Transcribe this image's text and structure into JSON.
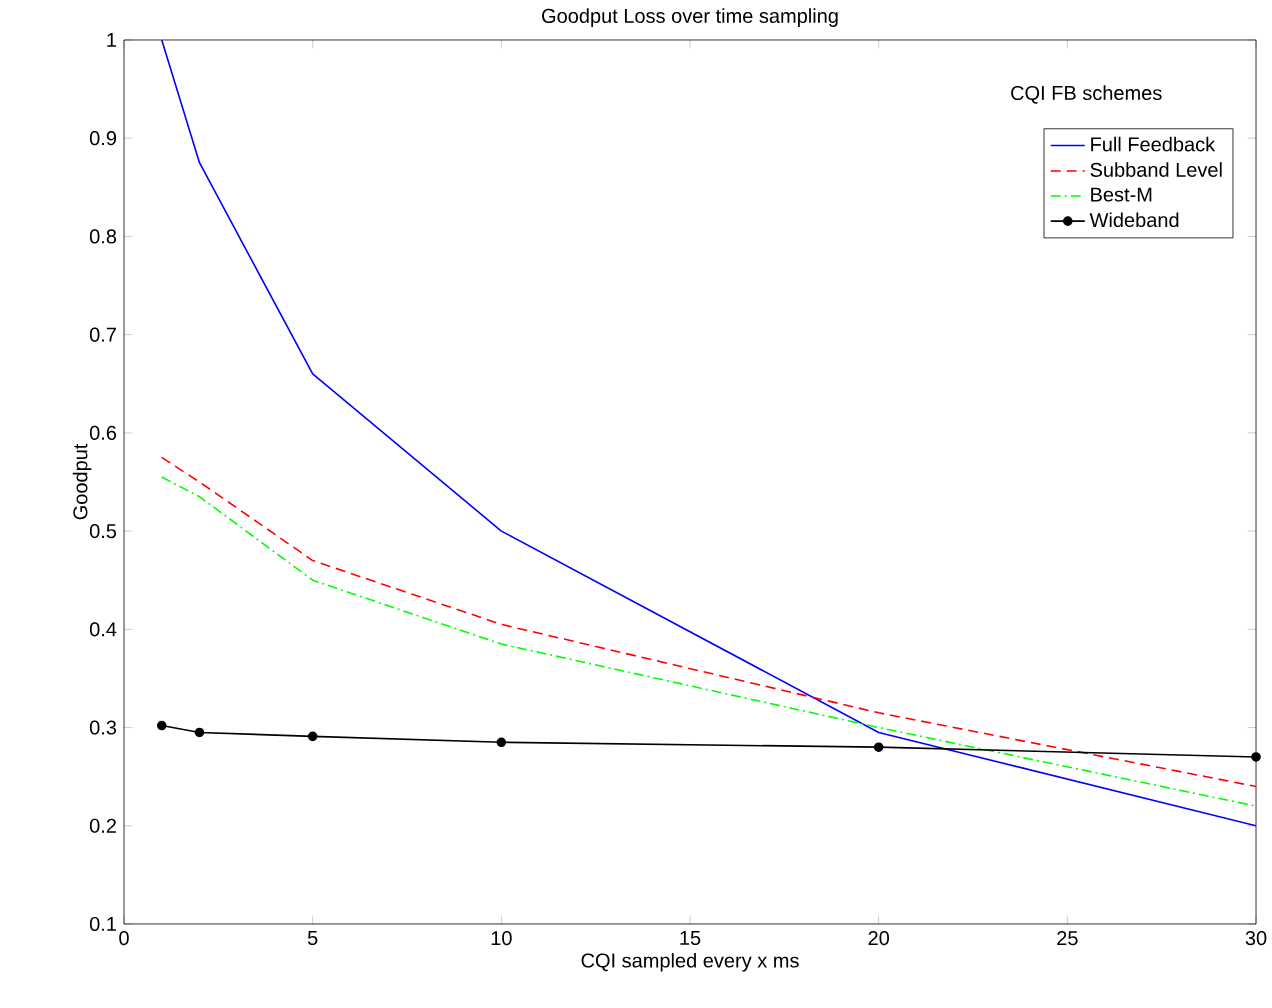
{
  "chart_data": {
    "type": "line",
    "title": "Goodput Loss over time sampling",
    "xlabel": "CQI sampled every x ms",
    "ylabel": "Goodput",
    "legend_title": "CQI FB schemes",
    "legend": "top right",
    "x": [
      1,
      2,
      5,
      10,
      20,
      30
    ],
    "series": [
      {
        "name": "Full Feedback",
        "color": "#0000ff",
        "line_style": "solid",
        "marker": "none",
        "values": [
          1.0,
          0.875,
          0.66,
          0.5,
          0.295,
          0.2
        ]
      },
      {
        "name": "Subband Level",
        "color": "#ff0000",
        "line_style": "dashed",
        "marker": "none",
        "values": [
          0.575,
          0.55,
          0.47,
          0.405,
          0.315,
          0.24
        ]
      },
      {
        "name": "Best-M",
        "color": "#00ff00",
        "line_style": "dashdot",
        "marker": "none",
        "values": [
          0.555,
          0.535,
          0.45,
          0.385,
          0.3,
          0.22
        ]
      },
      {
        "name": "Wideband",
        "color": "#000000",
        "line_style": "solid",
        "marker": "circle",
        "values": [
          0.302,
          0.295,
          0.291,
          0.285,
          0.28,
          0.27
        ]
      }
    ],
    "xlim": [
      0,
      30
    ],
    "ylim": [
      0.1,
      1
    ],
    "xticks": [
      0,
      5,
      10,
      15,
      20,
      25,
      30
    ],
    "yticks": [
      0.1,
      0.2,
      0.3,
      0.4,
      0.5,
      0.6,
      0.7,
      0.8,
      0.9,
      1
    ],
    "grid": false
  }
}
